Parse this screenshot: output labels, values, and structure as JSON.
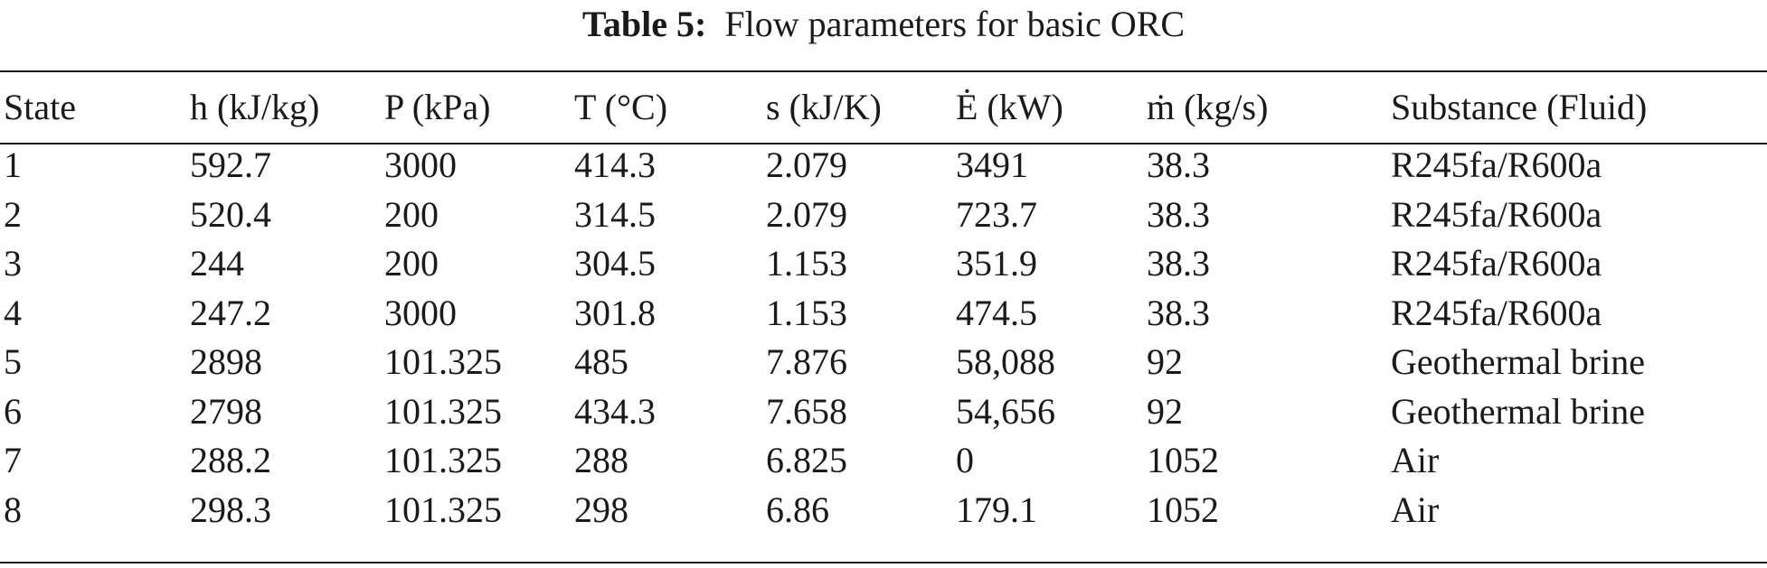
{
  "caption": {
    "label": "Table 5:",
    "text": "Flow parameters for basic ORC"
  },
  "table": {
    "headers": [
      "State",
      "h (kJ/kg)",
      "P (kPa)",
      "T (°C)",
      "s (kJ/K)",
      "Ė (kW)",
      "ṁ (kg/s)",
      "Substance (Fluid)"
    ],
    "rows": [
      [
        "1",
        "592.7",
        "3000",
        "414.3",
        "2.079",
        "3491",
        "38.3",
        "R245fa/R600a"
      ],
      [
        "2",
        "520.4",
        "200",
        "314.5",
        "2.079",
        "723.7",
        "38.3",
        "R245fa/R600a"
      ],
      [
        "3",
        "244",
        "200",
        "304.5",
        "1.153",
        "351.9",
        "38.3",
        "R245fa/R600a"
      ],
      [
        "4",
        "247.2",
        "3000",
        "301.8",
        "1.153",
        "474.5",
        "38.3",
        "R245fa/R600a"
      ],
      [
        "5",
        "2898",
        "101.325",
        "485",
        "7.876",
        "58,088",
        "92",
        "Geothermal brine"
      ],
      [
        "6",
        "2798",
        "101.325",
        "434.3",
        "7.658",
        "54,656",
        "92",
        "Geothermal brine"
      ],
      [
        "7",
        "288.2",
        "101.325",
        "288",
        "6.825",
        "0",
        "1052",
        "Air"
      ],
      [
        "8",
        "298.3",
        "101.325",
        "298",
        "6.86",
        "179.1",
        "1052",
        "Air"
      ]
    ]
  }
}
